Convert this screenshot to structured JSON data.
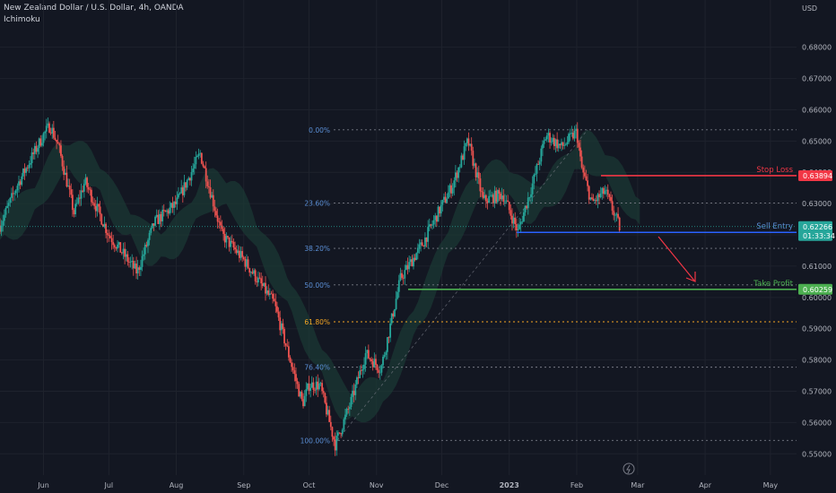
{
  "header": {
    "title": "New Zealand Dollar / U.S. Dollar, 4h, OANDA",
    "indicator": "Ichimoku"
  },
  "currency": "USD",
  "colors": {
    "background": "#131722",
    "up_candle": "#26a69a",
    "down_candle": "#ef5350",
    "stop_loss": "#f23645",
    "sell_entry": "#2962ff",
    "take_profit": "#4caf50",
    "fib_line": "#787b86",
    "fib_level_text": "#5b8fd6",
    "fib_golden": "#f5a623",
    "cloud": "#1b3b35"
  },
  "labels": {
    "stop_loss": "Stop Loss",
    "sell_entry": "Sell Entry",
    "take_profit": "Take Profit"
  },
  "price_tags": {
    "stop_loss": "0.63894",
    "current_price": "0.62266",
    "countdown": "01:33:34",
    "take_profit": "0.60259"
  },
  "chart_data": {
    "type": "candlestick",
    "symbol": "New Zealand Dollar / U.S. Dollar",
    "timeframe": "4h",
    "ylim": [
      0.5475,
      0.6865
    ],
    "y_ticks": [
      "0.55000",
      "0.56000",
      "0.57000",
      "0.58000",
      "0.59000",
      "0.60000",
      "0.61000",
      "0.62000",
      "0.63000",
      "0.64000",
      "0.65000",
      "0.66000",
      "0.67000",
      "0.68000"
    ],
    "y_tick_values": [
      0.55,
      0.56,
      0.57,
      0.58,
      0.59,
      0.6,
      0.61,
      0.62,
      0.63,
      0.64,
      0.65,
      0.66,
      0.67,
      0.68
    ],
    "x_ticks": [
      "Jun",
      "Jul",
      "Aug",
      "Sep",
      "Oct",
      "Nov",
      "Dec",
      "2023",
      "Feb",
      "Mar",
      "Apr",
      "May"
    ],
    "x_tick_dates": [
      "2022-06-01",
      "2022-07-01",
      "2022-08-01",
      "2022-09-01",
      "2022-10-01",
      "2022-11-01",
      "2022-12-01",
      "2023-01-01",
      "2023-02-01",
      "2023-03-01",
      "2023-04-01",
      "2023-05-01"
    ],
    "price_path": [
      {
        "date": "2022-05-12",
        "price": 0.623
      },
      {
        "date": "2022-05-20",
        "price": 0.636
      },
      {
        "date": "2022-06-01",
        "price": 0.652
      },
      {
        "date": "2022-06-04",
        "price": 0.655
      },
      {
        "date": "2022-06-08",
        "price": 0.648
      },
      {
        "date": "2022-06-15",
        "price": 0.627
      },
      {
        "date": "2022-06-20",
        "price": 0.637
      },
      {
        "date": "2022-07-01",
        "price": 0.62
      },
      {
        "date": "2022-07-14",
        "price": 0.608
      },
      {
        "date": "2022-07-22",
        "price": 0.624
      },
      {
        "date": "2022-08-01",
        "price": 0.63
      },
      {
        "date": "2022-08-12",
        "price": 0.646
      },
      {
        "date": "2022-08-22",
        "price": 0.62
      },
      {
        "date": "2022-09-01",
        "price": 0.612
      },
      {
        "date": "2022-09-15",
        "price": 0.598
      },
      {
        "date": "2022-09-28",
        "price": 0.566
      },
      {
        "date": "2022-10-01",
        "price": 0.572
      },
      {
        "date": "2022-10-06",
        "price": 0.572
      },
      {
        "date": "2022-10-13",
        "price": 0.553
      },
      {
        "date": "2022-10-20",
        "price": 0.566
      },
      {
        "date": "2022-10-27",
        "price": 0.582
      },
      {
        "date": "2022-11-03",
        "price": 0.577
      },
      {
        "date": "2022-11-12",
        "price": 0.606
      },
      {
        "date": "2022-11-22",
        "price": 0.617
      },
      {
        "date": "2022-11-30",
        "price": 0.628
      },
      {
        "date": "2022-12-06",
        "price": 0.636
      },
      {
        "date": "2022-12-13",
        "price": 0.65
      },
      {
        "date": "2022-12-20",
        "price": 0.631
      },
      {
        "date": "2022-12-29",
        "price": 0.633
      },
      {
        "date": "2023-01-05",
        "price": 0.621
      },
      {
        "date": "2023-01-12",
        "price": 0.637
      },
      {
        "date": "2023-01-18",
        "price": 0.652
      },
      {
        "date": "2023-01-25",
        "price": 0.648
      },
      {
        "date": "2023-02-01",
        "price": 0.653
      },
      {
        "date": "2023-02-03",
        "price": 0.642
      },
      {
        "date": "2023-02-08",
        "price": 0.63
      },
      {
        "date": "2023-02-14",
        "price": 0.634
      },
      {
        "date": "2023-02-21",
        "price": 0.622
      }
    ],
    "fibonacci": [
      {
        "label": "0.00%",
        "price": 0.6536
      },
      {
        "label": "23.60%",
        "price": 0.6302
      },
      {
        "label": "38.20%",
        "price": 0.6157
      },
      {
        "label": "50.00%",
        "price": 0.604
      },
      {
        "label": "61.80%",
        "price": 0.5922
      },
      {
        "label": "76.40%",
        "price": 0.5777
      },
      {
        "label": "100.00%",
        "price": 0.5543
      }
    ],
    "levels": {
      "stop_loss": 0.63894,
      "sell_entry": 0.6208,
      "take_profit": 0.60259,
      "current": 0.62266
    }
  }
}
